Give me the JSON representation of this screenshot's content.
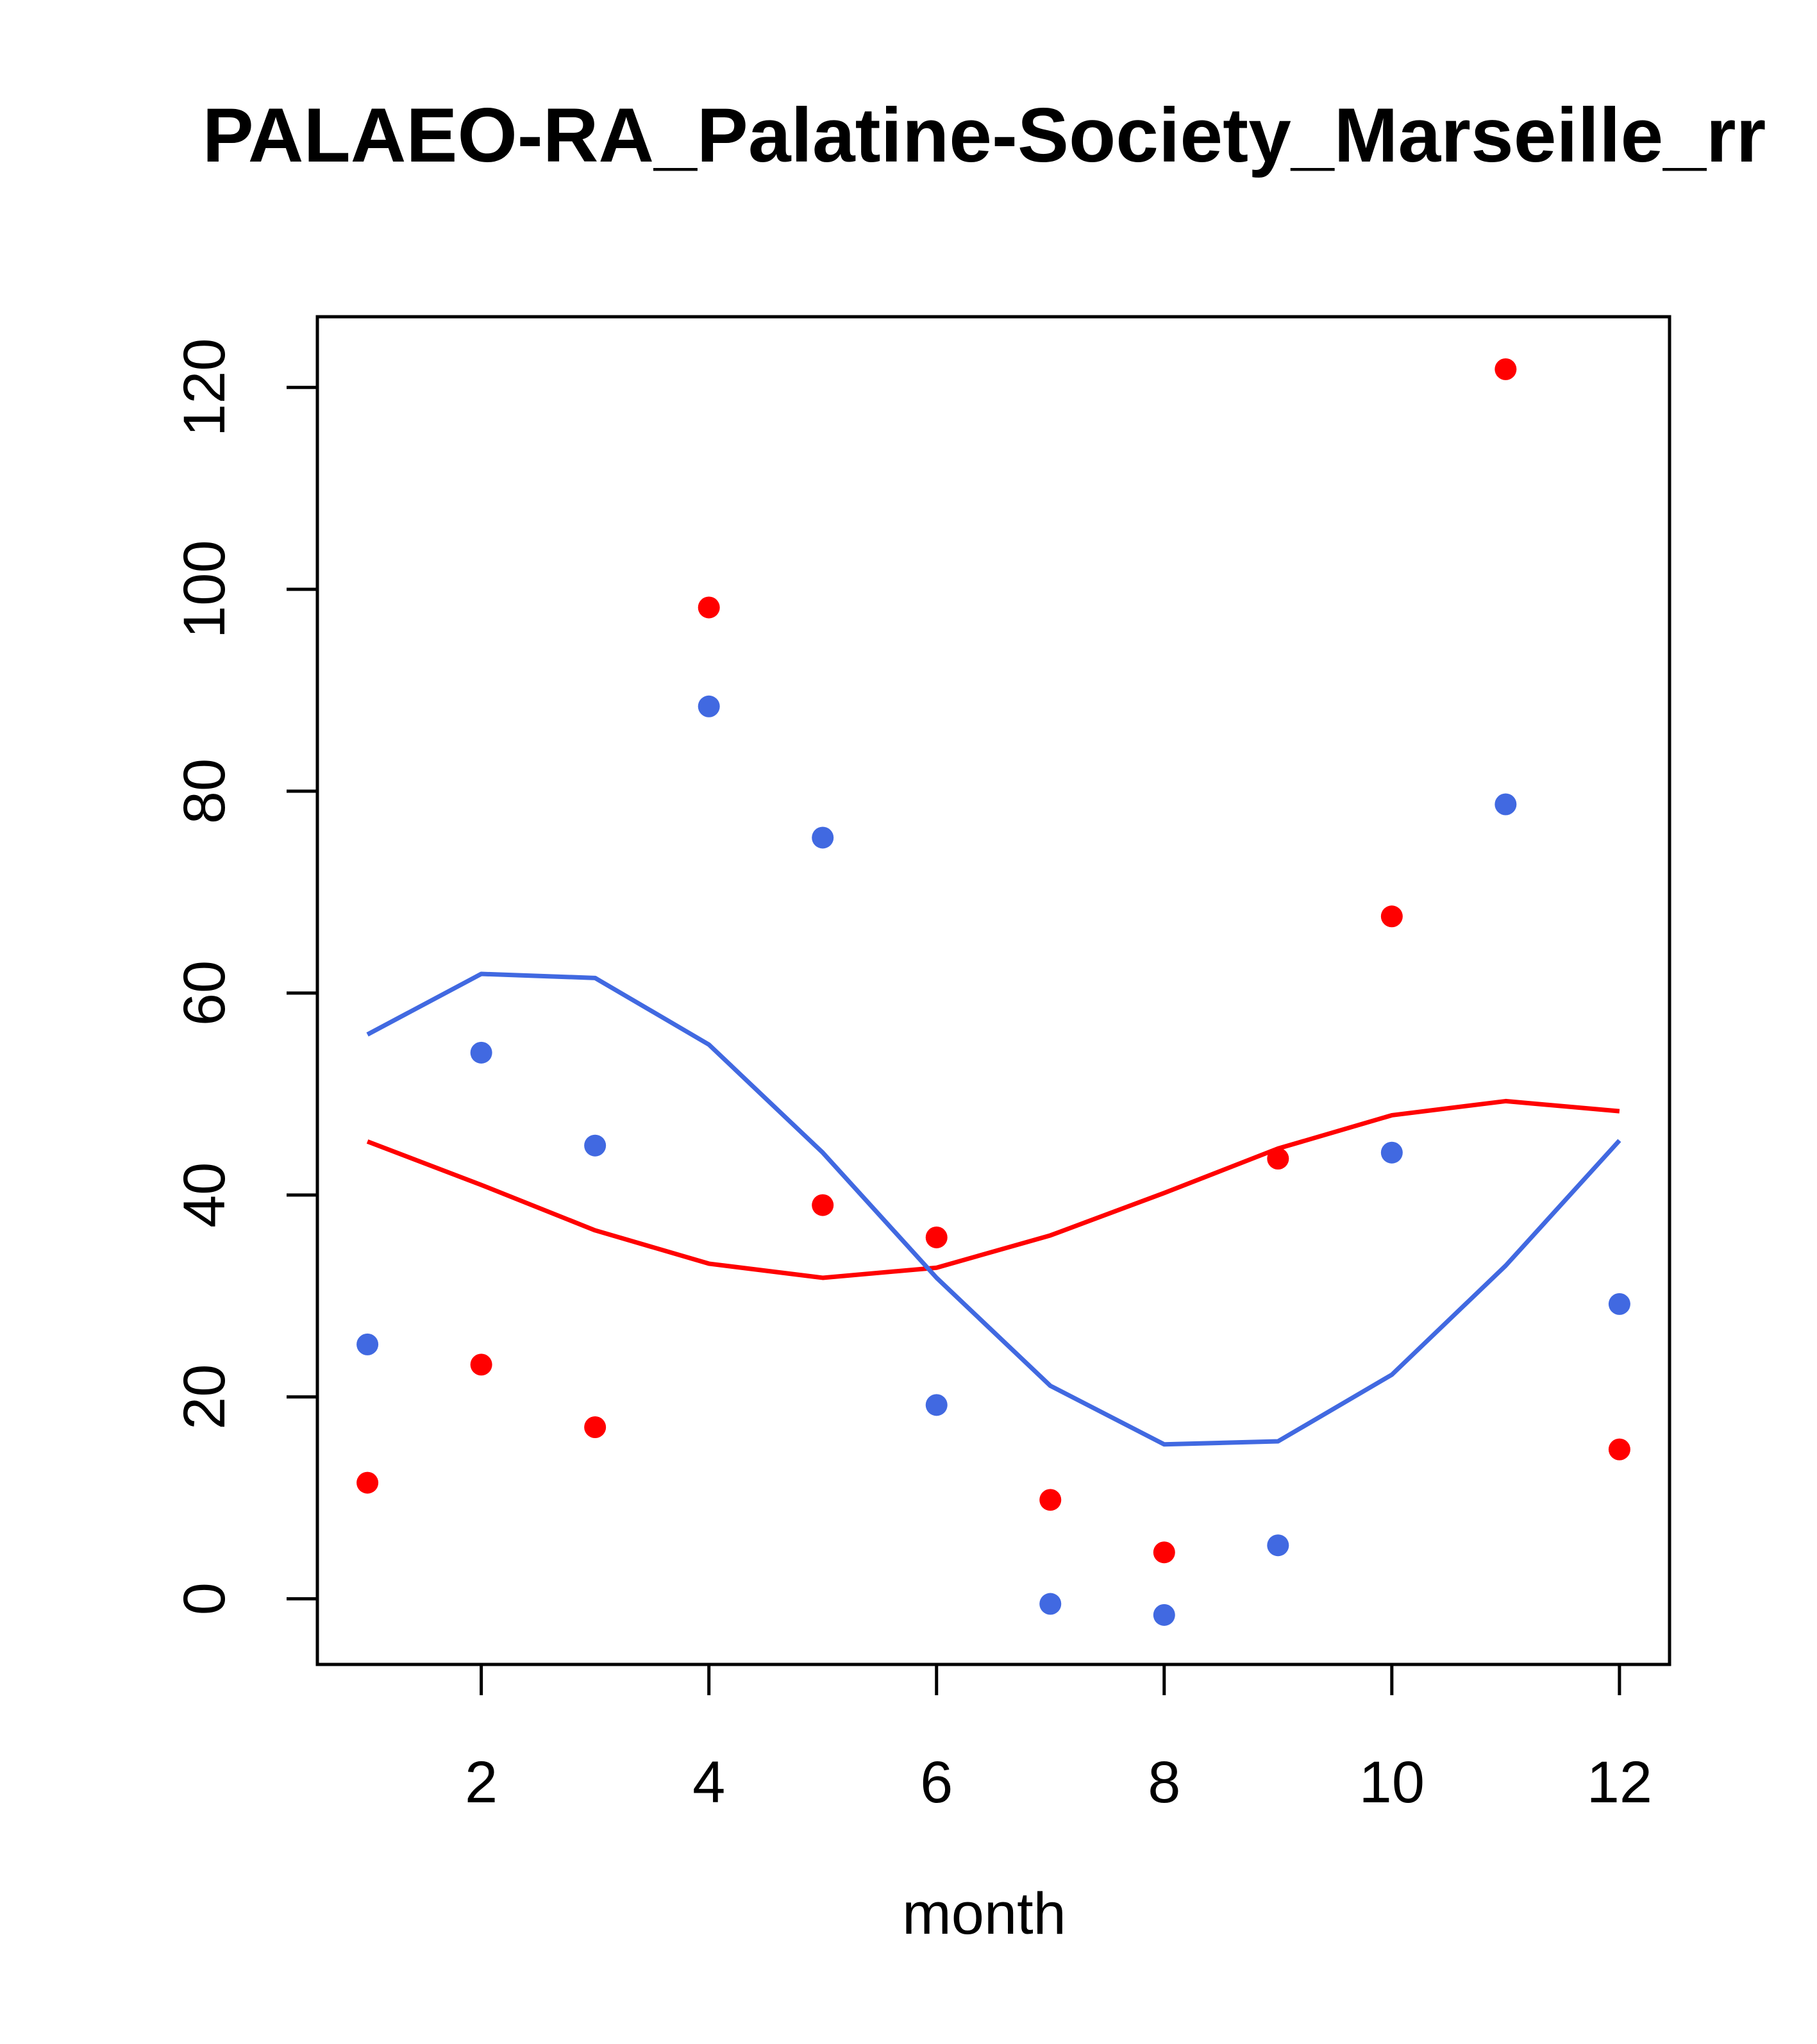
{
  "chart_data": {
    "type": "scatter",
    "title": "PALAEO-RA_Palatine-Society_Marseille_rr",
    "xlabel": "month",
    "ylabel": "",
    "xlim": [
      0.56,
      12.44
    ],
    "ylim": [
      -6.5,
      127
    ],
    "grid": false,
    "legend": "none",
    "x_ticks": [
      2,
      4,
      6,
      8,
      10,
      12
    ],
    "y_ticks": [
      0,
      20,
      40,
      60,
      80,
      100,
      120
    ],
    "x_tick_labels": [
      "2",
      "4",
      "6",
      "8",
      "10",
      "12"
    ],
    "y_tick_labels": [
      "0",
      "20",
      "40",
      "60",
      "80",
      "100",
      "120"
    ],
    "x": [
      1,
      2,
      3,
      4,
      5,
      6,
      7,
      8,
      9,
      10,
      11,
      12
    ],
    "series": [
      {
        "name": "red points",
        "kind": "points",
        "color": "#ff0000",
        "values": [
          11.5,
          23.2,
          17.0,
          98.2,
          39.0,
          35.8,
          9.8,
          4.6,
          43.6,
          67.6,
          121.8,
          14.8
        ]
      },
      {
        "name": "blue points",
        "kind": "points",
        "color": "#4169e1",
        "values": [
          25.2,
          54.1,
          44.9,
          88.4,
          75.4,
          19.2,
          -0.5,
          -1.6,
          5.3,
          44.2,
          78.7,
          29.2
        ]
      },
      {
        "name": "red line",
        "kind": "line",
        "color": "#ff0000",
        "values": [
          45.3,
          41.0,
          36.5,
          33.2,
          31.8,
          32.8,
          36.0,
          40.2,
          44.6,
          47.9,
          49.3,
          48.3
        ]
      },
      {
        "name": "blue line",
        "kind": "line",
        "color": "#4169e1",
        "values": [
          55.9,
          61.9,
          61.5,
          54.9,
          44.2,
          31.8,
          21.1,
          15.3,
          15.6,
          22.2,
          33.0,
          45.4
        ]
      }
    ]
  }
}
